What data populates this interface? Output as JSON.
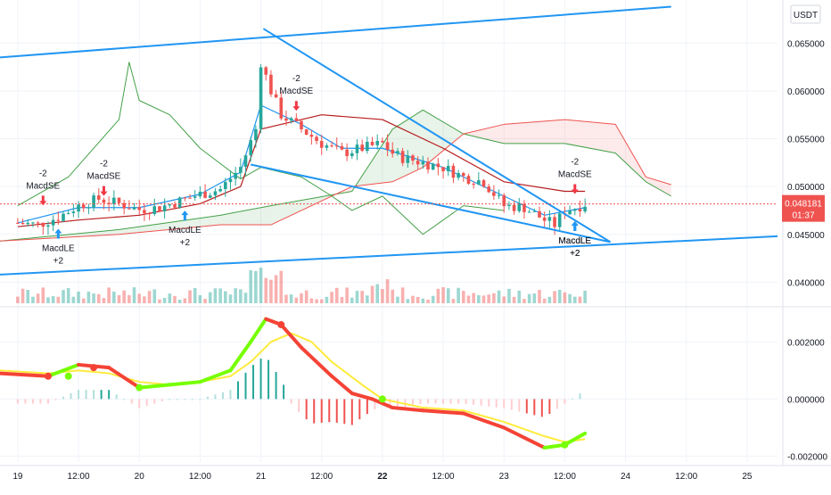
{
  "chart_data": {
    "type": "candlestick",
    "currency": "USDT",
    "price_axis": {
      "ticks": [
        "0.065000",
        "0.060000",
        "0.055000",
        "0.050000",
        "0.045000",
        "0.040000"
      ],
      "values": [
        0.065,
        0.06,
        0.055,
        0.05,
        0.045,
        0.04
      ],
      "range": [
        0.0378,
        0.0695
      ]
    },
    "macd_axis": {
      "ticks": [
        "0.002000",
        "0.000000",
        "-0.002000"
      ],
      "values": [
        0.002,
        0.0,
        -0.002
      ],
      "range": [
        -0.0022,
        0.0031
      ]
    },
    "time_axis": {
      "ticks": [
        "19",
        "12:00",
        "20",
        "12:00",
        "21",
        "12:00",
        "22",
        "12:00",
        "23",
        "12:00",
        "24",
        "12:00",
        "25"
      ],
      "bold": [
        false,
        false,
        false,
        false,
        false,
        false,
        true,
        false,
        false,
        false,
        false,
        false,
        false
      ],
      "values": [
        0,
        12,
        24,
        36,
        48,
        60,
        72,
        84,
        96,
        108,
        120,
        132,
        144
      ],
      "range": [
        -3.5,
        150
      ]
    },
    "current_price": {
      "value": "0.048181",
      "countdown": "01:37",
      "color": "#ef5350"
    },
    "colors": {
      "up": "#26a69a",
      "down": "#ef5350",
      "trendline": "#2196f3",
      "kumo_bull": "#43a047",
      "kumo_bear": "#ef5350",
      "macd_up": "#76ff03",
      "macd_down": "#f44336",
      "signal": "#ffeb3b"
    },
    "signals": [
      {
        "type": "buy",
        "label": "MacdLE",
        "qty": "+2",
        "t": 8,
        "price": 0.0453
      },
      {
        "type": "sell",
        "label": "MacdSE",
        "qty": "-2",
        "t": 5,
        "price": 0.0483
      },
      {
        "type": "sell",
        "label": "MacdSE",
        "qty": "-2",
        "t": 17,
        "price": 0.0493
      },
      {
        "type": "buy",
        "label": "MacdLE",
        "qty": "+2",
        "t": 33,
        "price": 0.0472
      },
      {
        "type": "sell",
        "label": "MacdSE",
        "qty": "-2",
        "t": 55,
        "price": 0.0582
      },
      {
        "type": "sell",
        "label": "MacdSE",
        "qty": "-2",
        "t": 110,
        "price": 0.0495
      },
      {
        "type": "buy",
        "label": "MacdLE",
        "qty": "+2",
        "t": 110,
        "price": 0.0461
      },
      {
        "type": "buy",
        "label": "MacdLE",
        "qty": "+2",
        "t": 110,
        "price": 0.0461
      }
    ],
    "trendlines": [
      {
        "name": "upper channel",
        "points": [
          [
            -3.5,
            0.0635
          ],
          [
            129,
            0.0688
          ]
        ]
      },
      {
        "name": "lower channel",
        "points": [
          [
            -3.5,
            0.0408
          ],
          [
            150,
            0.0448
          ]
        ]
      },
      {
        "name": "wedge top",
        "points": [
          [
            48.5,
            0.0665
          ],
          [
            117,
            0.0442
          ]
        ]
      },
      {
        "name": "wedge bottom",
        "points": [
          [
            46,
            0.0523
          ],
          [
            117,
            0.0442
          ]
        ]
      }
    ],
    "price_path": [
      [
        0,
        0.0462
      ],
      [
        4,
        0.046
      ],
      [
        8,
        0.0468
      ],
      [
        12,
        0.048
      ],
      [
        16,
        0.0487
      ],
      [
        20,
        0.0482
      ],
      [
        24,
        0.0476
      ],
      [
        28,
        0.0478
      ],
      [
        32,
        0.0485
      ],
      [
        36,
        0.0492
      ],
      [
        40,
        0.0497
      ],
      [
        44,
        0.052
      ],
      [
        47,
        0.056
      ],
      [
        48,
        0.063
      ],
      [
        50,
        0.06
      ],
      [
        52,
        0.0575
      ],
      [
        56,
        0.056
      ],
      [
        60,
        0.0545
      ],
      [
        64,
        0.0535
      ],
      [
        68,
        0.054
      ],
      [
        72,
        0.0545
      ],
      [
        74,
        0.0535
      ],
      [
        76,
        0.053
      ],
      [
        80,
        0.0525
      ],
      [
        84,
        0.052
      ],
      [
        88,
        0.051
      ],
      [
        92,
        0.0505
      ],
      [
        96,
        0.048
      ],
      [
        100,
        0.0478
      ],
      [
        104,
        0.0465
      ],
      [
        106,
        0.046
      ],
      [
        108,
        0.0475
      ],
      [
        110,
        0.0478
      ],
      [
        112,
        0.0482
      ]
    ],
    "ichimoku": {
      "span_a": [
        [
          -3.5,
          0.0443
        ],
        [
          20,
          0.0455
        ],
        [
          40,
          0.047
        ],
        [
          50,
          0.048
        ],
        [
          66,
          0.0495
        ],
        [
          74,
          0.056
        ],
        [
          80,
          0.058
        ],
        [
          88,
          0.0555
        ],
        [
          96,
          0.0545
        ],
        [
          108,
          0.0545
        ],
        [
          118,
          0.0535
        ],
        [
          124,
          0.0505
        ],
        [
          129,
          0.049
        ]
      ],
      "span_b": [
        [
          -3.5,
          0.0443
        ],
        [
          20,
          0.045
        ],
        [
          40,
          0.046
        ],
        [
          50,
          0.046
        ],
        [
          66,
          0.05
        ],
        [
          74,
          0.0505
        ],
        [
          80,
          0.052
        ],
        [
          88,
          0.0555
        ],
        [
          96,
          0.0565
        ],
        [
          108,
          0.057
        ],
        [
          118,
          0.0565
        ],
        [
          124,
          0.051
        ],
        [
          129,
          0.0502
        ]
      ],
      "lagging": [
        [
          0,
          0.048
        ],
        [
          10,
          0.051
        ],
        [
          20,
          0.057
        ],
        [
          22,
          0.063
        ],
        [
          24,
          0.059
        ],
        [
          30,
          0.0575
        ],
        [
          36,
          0.054
        ],
        [
          44,
          0.0508
        ],
        [
          48,
          0.052
        ],
        [
          56,
          0.051
        ],
        [
          62,
          0.049
        ],
        [
          66,
          0.0475
        ],
        [
          72,
          0.049
        ],
        [
          80,
          0.045
        ],
        [
          88,
          0.048
        ],
        [
          96,
          0.0475
        ]
      ],
      "base": [
        [
          0,
          0.0458
        ],
        [
          12,
          0.0465
        ],
        [
          24,
          0.047
        ],
        [
          36,
          0.0482
        ],
        [
          44,
          0.05
        ],
        [
          48,
          0.056
        ],
        [
          60,
          0.0575
        ],
        [
          72,
          0.057
        ],
        [
          84,
          0.054
        ],
        [
          96,
          0.0505
        ],
        [
          108,
          0.0495
        ],
        [
          112,
          0.0495
        ]
      ],
      "conversion": [
        [
          0,
          0.0462
        ],
        [
          12,
          0.0478
        ],
        [
          24,
          0.0478
        ],
        [
          36,
          0.0492
        ],
        [
          44,
          0.0515
        ],
        [
          48,
          0.0585
        ],
        [
          56,
          0.0565
        ],
        [
          64,
          0.054
        ],
        [
          72,
          0.054
        ],
        [
          84,
          0.052
        ],
        [
          96,
          0.049
        ],
        [
          104,
          0.047
        ],
        [
          112,
          0.0478
        ]
      ]
    },
    "macd": {
      "macd": [
        [
          -3.5,
          0.0009
        ],
        [
          6,
          0.0008
        ],
        [
          12,
          0.0012
        ],
        [
          18,
          0.0011
        ],
        [
          24,
          0.0004
        ],
        [
          30,
          0.0005
        ],
        [
          36,
          0.0006
        ],
        [
          42,
          0.001
        ],
        [
          46,
          0.002
        ],
        [
          49,
          0.0028
        ],
        [
          52,
          0.0026
        ],
        [
          56,
          0.0018
        ],
        [
          62,
          0.0008
        ],
        [
          66,
          0.0002
        ],
        [
          70,
          0.0
        ],
        [
          74,
          -0.0003
        ],
        [
          80,
          -0.0004
        ],
        [
          88,
          -0.0005
        ],
        [
          96,
          -0.001
        ],
        [
          104,
          -0.0017
        ],
        [
          108,
          -0.0016
        ],
        [
          112,
          -0.0012
        ]
      ],
      "signal": [
        [
          -3.5,
          0.001
        ],
        [
          6,
          0.0009
        ],
        [
          12,
          0.001
        ],
        [
          18,
          0.0009
        ],
        [
          24,
          0.0006
        ],
        [
          30,
          0.0005
        ],
        [
          36,
          0.0006
        ],
        [
          42,
          0.0008
        ],
        [
          46,
          0.0013
        ],
        [
          50,
          0.002
        ],
        [
          54,
          0.0023
        ],
        [
          58,
          0.002
        ],
        [
          62,
          0.0013
        ],
        [
          68,
          0.0005
        ],
        [
          72,
          0.0
        ],
        [
          80,
          -0.0003
        ],
        [
          88,
          -0.0004
        ],
        [
          96,
          -0.0008
        ],
        [
          104,
          -0.0013
        ],
        [
          108,
          -0.0015
        ],
        [
          112,
          -0.0014
        ]
      ]
    }
  }
}
